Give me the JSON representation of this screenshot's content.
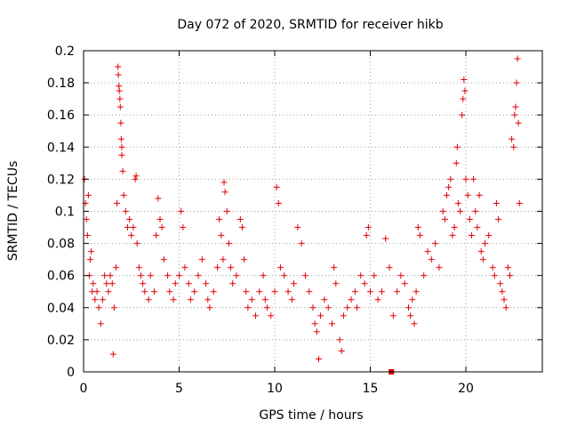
{
  "chart_data": {
    "type": "scatter",
    "title": "Day 072 of 2020, SRMTID for receiver hikb",
    "xlabel": "GPS time / hours",
    "ylabel": "SRMTID / TECUs",
    "xlim": [
      0,
      24
    ],
    "ylim": [
      0,
      0.2
    ],
    "x_ticks": [
      0,
      5,
      10,
      15,
      20
    ],
    "y_ticks": [
      0,
      0.02,
      0.04,
      0.06,
      0.08,
      0.1,
      0.12,
      0.14,
      0.16,
      0.18,
      0.2
    ],
    "x_tick_labels": [
      "0",
      "5",
      "10",
      "15",
      "20"
    ],
    "y_tick_labels": [
      "0",
      "0.02",
      "0.04",
      "0.06",
      "0.08",
      "0.1",
      "0.12",
      "0.14",
      "0.16",
      "0.18",
      "0.2"
    ],
    "grid": true,
    "marker": "plus",
    "series_color": "#e00000",
    "flag_marker": {
      "x": 16.1,
      "y": 0
    },
    "points": [
      [
        0.05,
        0.12
      ],
      [
        0.1,
        0.105
      ],
      [
        0.15,
        0.095
      ],
      [
        0.2,
        0.085
      ],
      [
        0.25,
        0.11
      ],
      [
        0.3,
        0.06
      ],
      [
        0.35,
        0.07
      ],
      [
        0.4,
        0.075
      ],
      [
        0.45,
        0.05
      ],
      [
        0.5,
        0.055
      ],
      [
        0.6,
        0.045
      ],
      [
        0.7,
        0.05
      ],
      [
        0.8,
        0.04
      ],
      [
        0.9,
        0.03
      ],
      [
        1.0,
        0.045
      ],
      [
        1.1,
        0.06
      ],
      [
        1.2,
        0.055
      ],
      [
        1.3,
        0.05
      ],
      [
        1.4,
        0.06
      ],
      [
        1.5,
        0.055
      ],
      [
        1.55,
        0.011
      ],
      [
        1.6,
        0.04
      ],
      [
        1.7,
        0.065
      ],
      [
        1.75,
        0.105
      ],
      [
        1.8,
        0.19
      ],
      [
        1.82,
        0.185
      ],
      [
        1.85,
        0.178
      ],
      [
        1.87,
        0.175
      ],
      [
        1.9,
        0.17
      ],
      [
        1.92,
        0.165
      ],
      [
        1.95,
        0.155
      ],
      [
        1.97,
        0.145
      ],
      [
        2.0,
        0.14
      ],
      [
        2.0,
        0.135
      ],
      [
        2.05,
        0.125
      ],
      [
        2.1,
        0.11
      ],
      [
        2.2,
        0.1
      ],
      [
        2.3,
        0.09
      ],
      [
        2.4,
        0.095
      ],
      [
        2.5,
        0.085
      ],
      [
        2.6,
        0.09
      ],
      [
        2.7,
        0.12
      ],
      [
        2.75,
        0.122
      ],
      [
        2.8,
        0.08
      ],
      [
        2.9,
        0.065
      ],
      [
        3.0,
        0.06
      ],
      [
        3.1,
        0.055
      ],
      [
        3.2,
        0.05
      ],
      [
        3.4,
        0.045
      ],
      [
        3.5,
        0.06
      ],
      [
        3.7,
        0.05
      ],
      [
        3.8,
        0.085
      ],
      [
        3.9,
        0.108
      ],
      [
        4.0,
        0.095
      ],
      [
        4.1,
        0.09
      ],
      [
        4.2,
        0.07
      ],
      [
        4.4,
        0.06
      ],
      [
        4.5,
        0.05
      ],
      [
        4.7,
        0.045
      ],
      [
        4.8,
        0.055
      ],
      [
        5.0,
        0.06
      ],
      [
        5.1,
        0.1
      ],
      [
        5.2,
        0.09
      ],
      [
        5.3,
        0.065
      ],
      [
        5.5,
        0.055
      ],
      [
        5.6,
        0.045
      ],
      [
        5.8,
        0.05
      ],
      [
        6.0,
        0.06
      ],
      [
        6.2,
        0.07
      ],
      [
        6.4,
        0.055
      ],
      [
        6.5,
        0.045
      ],
      [
        6.6,
        0.04
      ],
      [
        6.8,
        0.05
      ],
      [
        7.0,
        0.065
      ],
      [
        7.1,
        0.095
      ],
      [
        7.2,
        0.085
      ],
      [
        7.3,
        0.07
      ],
      [
        7.35,
        0.118
      ],
      [
        7.4,
        0.112
      ],
      [
        7.5,
        0.1
      ],
      [
        7.6,
        0.08
      ],
      [
        7.7,
        0.065
      ],
      [
        7.8,
        0.055
      ],
      [
        8.0,
        0.06
      ],
      [
        8.2,
        0.095
      ],
      [
        8.3,
        0.09
      ],
      [
        8.4,
        0.07
      ],
      [
        8.5,
        0.05
      ],
      [
        8.6,
        0.04
      ],
      [
        8.8,
        0.045
      ],
      [
        9.0,
        0.035
      ],
      [
        9.2,
        0.05
      ],
      [
        9.4,
        0.06
      ],
      [
        9.5,
        0.045
      ],
      [
        9.6,
        0.04
      ],
      [
        9.8,
        0.035
      ],
      [
        10.0,
        0.05
      ],
      [
        10.1,
        0.115
      ],
      [
        10.2,
        0.105
      ],
      [
        10.3,
        0.065
      ],
      [
        10.5,
        0.06
      ],
      [
        10.7,
        0.05
      ],
      [
        10.9,
        0.045
      ],
      [
        11.0,
        0.055
      ],
      [
        11.2,
        0.09
      ],
      [
        11.4,
        0.08
      ],
      [
        11.6,
        0.06
      ],
      [
        11.8,
        0.05
      ],
      [
        12.0,
        0.04
      ],
      [
        12.1,
        0.03
      ],
      [
        12.2,
        0.025
      ],
      [
        12.3,
        0.008
      ],
      [
        12.4,
        0.035
      ],
      [
        12.6,
        0.045
      ],
      [
        12.8,
        0.04
      ],
      [
        13.0,
        0.03
      ],
      [
        13.1,
        0.065
      ],
      [
        13.2,
        0.055
      ],
      [
        13.4,
        0.02
      ],
      [
        13.5,
        0.013
      ],
      [
        13.6,
        0.035
      ],
      [
        13.8,
        0.04
      ],
      [
        14.0,
        0.045
      ],
      [
        14.2,
        0.05
      ],
      [
        14.3,
        0.04
      ],
      [
        14.5,
        0.06
      ],
      [
        14.7,
        0.055
      ],
      [
        14.8,
        0.085
      ],
      [
        14.9,
        0.09
      ],
      [
        15.0,
        0.05
      ],
      [
        15.2,
        0.06
      ],
      [
        15.4,
        0.045
      ],
      [
        15.6,
        0.05
      ],
      [
        15.8,
        0.083
      ],
      [
        16.0,
        0.065
      ],
      [
        16.2,
        0.035
      ],
      [
        16.4,
        0.05
      ],
      [
        16.6,
        0.06
      ],
      [
        16.8,
        0.055
      ],
      [
        17.0,
        0.04
      ],
      [
        17.1,
        0.035
      ],
      [
        17.2,
        0.045
      ],
      [
        17.3,
        0.03
      ],
      [
        17.4,
        0.05
      ],
      [
        17.5,
        0.09
      ],
      [
        17.6,
        0.085
      ],
      [
        17.8,
        0.06
      ],
      [
        18.0,
        0.075
      ],
      [
        18.2,
        0.07
      ],
      [
        18.4,
        0.08
      ],
      [
        18.6,
        0.065
      ],
      [
        18.8,
        0.1
      ],
      [
        18.9,
        0.095
      ],
      [
        19.0,
        0.11
      ],
      [
        19.1,
        0.115
      ],
      [
        19.2,
        0.12
      ],
      [
        19.3,
        0.085
      ],
      [
        19.4,
        0.09
      ],
      [
        19.5,
        0.13
      ],
      [
        19.55,
        0.14
      ],
      [
        19.6,
        0.105
      ],
      [
        19.7,
        0.1
      ],
      [
        19.8,
        0.16
      ],
      [
        19.85,
        0.17
      ],
      [
        19.9,
        0.182
      ],
      [
        19.95,
        0.175
      ],
      [
        20.0,
        0.12
      ],
      [
        20.1,
        0.11
      ],
      [
        20.2,
        0.095
      ],
      [
        20.3,
        0.085
      ],
      [
        20.4,
        0.12
      ],
      [
        20.5,
        0.1
      ],
      [
        20.6,
        0.09
      ],
      [
        20.7,
        0.11
      ],
      [
        20.8,
        0.075
      ],
      [
        20.9,
        0.07
      ],
      [
        21.0,
        0.08
      ],
      [
        21.2,
        0.085
      ],
      [
        21.4,
        0.065
      ],
      [
        21.5,
        0.06
      ],
      [
        21.6,
        0.105
      ],
      [
        21.7,
        0.095
      ],
      [
        21.8,
        0.055
      ],
      [
        21.9,
        0.05
      ],
      [
        22.0,
        0.045
      ],
      [
        22.1,
        0.04
      ],
      [
        22.2,
        0.065
      ],
      [
        22.3,
        0.06
      ],
      [
        22.4,
        0.145
      ],
      [
        22.5,
        0.14
      ],
      [
        22.55,
        0.16
      ],
      [
        22.6,
        0.165
      ],
      [
        22.65,
        0.18
      ],
      [
        22.7,
        0.195
      ],
      [
        22.75,
        0.155
      ],
      [
        22.8,
        0.105
      ]
    ]
  }
}
